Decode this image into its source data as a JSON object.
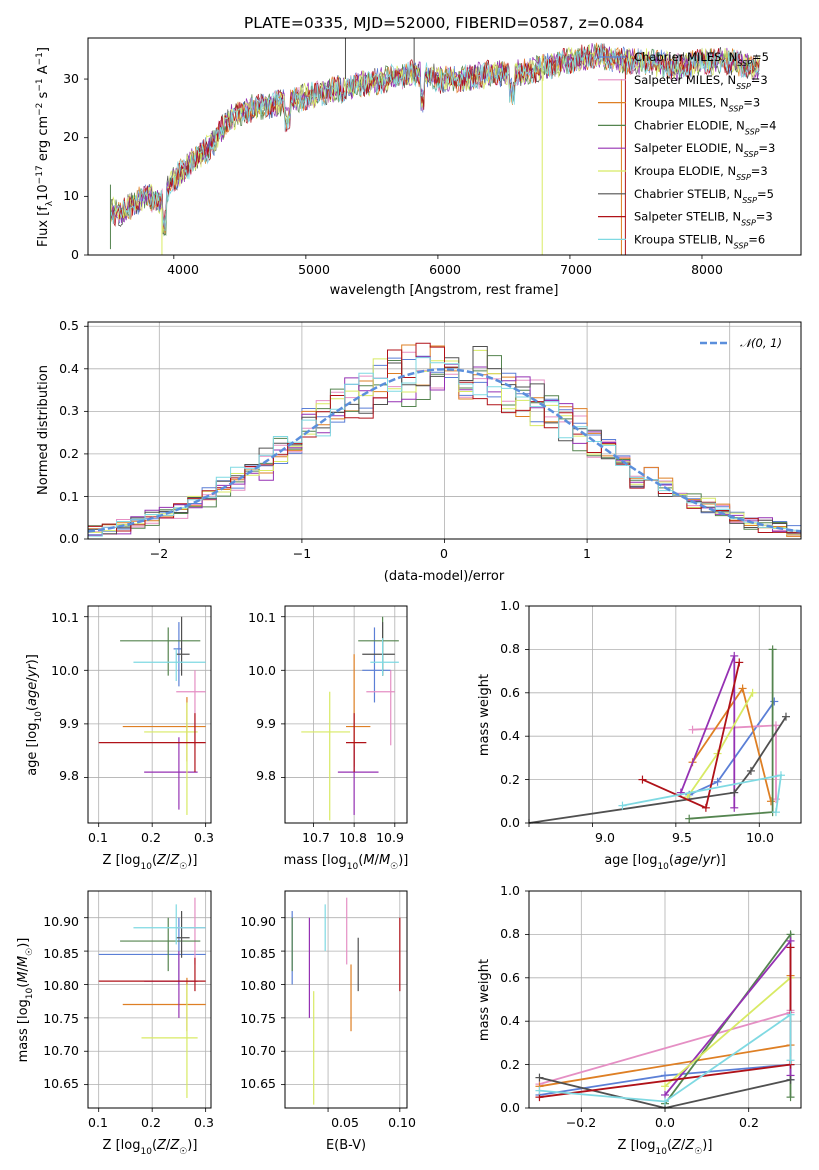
{
  "colors": [
    "#5b7fd6",
    "#e58fc4",
    "#de7f24",
    "#54844f",
    "#9531b3",
    "#d8ea64",
    "#505050",
    "#b01219",
    "#7fd9e2"
  ],
  "spectrum_panel": {
    "title": "PLATE=0335, MJD=52000, FIBERID=0587, z=0.084",
    "xlabel": "wavelength [Angstrom, rest frame]",
    "ylabel": "Flux [f_λ 10^-17 erg cm^-2 s^-1 A^-1]",
    "xticks": [
      "4000",
      "5000",
      "6000",
      "7000",
      "8000"
    ],
    "yticks": [
      "0",
      "10",
      "20",
      "30"
    ],
    "legend": [
      "Chabrier MILES, N_SSP=5",
      "Salpeter MILES, N_SSP=3",
      "Kroupa MILES, N_SSP=3",
      "Chabrier ELODIE, N_SSP=4",
      "Salpeter ELODIE, N_SSP=3",
      "Kroupa ELODIE, N_SSP=3",
      "Chabrier STELIB, N_SSP=5",
      "Salpeter STELIB, N_SSP=3",
      "Kroupa STELIB, N_SSP=6"
    ]
  },
  "residual_panel": {
    "xlabel": "(data-model)/error",
    "ylabel": "Normed distribution",
    "xticks": [
      "−2",
      "−1",
      "0",
      "1",
      "2"
    ],
    "yticks": [
      "0.0",
      "0.1",
      "0.2",
      "0.3",
      "0.4",
      "0.5"
    ],
    "legend_gauss": "𝒩(0, 1)"
  },
  "age_z_panel": {
    "xlabel": "Z [log10(Z/Z☉)]",
    "ylabel": "age [log10(age/yr)]",
    "xticks": [
      "0.1",
      "0.2",
      "0.3"
    ],
    "yticks": [
      "9.8",
      "9.9",
      "10.0",
      "10.1"
    ]
  },
  "age_mass_panel": {
    "xlabel": "mass [log10(M/M☉)]",
    "xticks": [
      "10.7",
      "10.8",
      "10.9"
    ],
    "yticks": [
      "9.8",
      "9.9",
      "10.0",
      "10.1"
    ]
  },
  "weight_age_panel": {
    "xlabel": "age [log10(age/yr)]",
    "ylabel": "mass weight",
    "xticks": [
      "9.0",
      "9.5",
      "10.0"
    ],
    "yticks": [
      "0.0",
      "0.2",
      "0.4",
      "0.6",
      "0.8",
      "1.0"
    ]
  },
  "mass_z_panel": {
    "xlabel": "Z [log10(Z/Z☉)]",
    "ylabel": "mass [log10(M/M☉)]",
    "xticks": [
      "0.1",
      "0.2",
      "0.3"
    ],
    "yticks": [
      "10.65",
      "10.70",
      "10.75",
      "10.80",
      "10.85",
      "10.90"
    ]
  },
  "mass_ebv_panel": {
    "xlabel": "E(B-V)",
    "xticks": [
      "0.05",
      "0.10"
    ],
    "yticks": [
      "10.65",
      "10.70",
      "10.75",
      "10.80",
      "10.85",
      "10.90"
    ]
  },
  "weight_z_panel": {
    "xlabel": "Z [log10(Z/Z☉)]",
    "ylabel": "mass weight",
    "xticks": [
      "−0.2",
      "0.0",
      "0.2"
    ],
    "yticks": [
      "0.0",
      "0.2",
      "0.4",
      "0.6",
      "0.8",
      "1.0"
    ]
  },
  "chart_data": [
    {
      "type": "line",
      "title": "PLATE=0335, MJD=52000, FIBERID=0587, z=0.084",
      "xlabel": "wavelength [Angstrom, rest frame]",
      "ylabel": "Flux [f_λ 10^-17 erg cm^-2 s^-1 A^-1]",
      "xlim": [
        3350,
        8750
      ],
      "ylim": [
        0,
        37
      ],
      "series_names": [
        "Chabrier MILES, N_SSP=5",
        "Salpeter MILES, N_SSP=3",
        "Kroupa MILES, N_SSP=3",
        "Chabrier ELODIE, N_SSP=4",
        "Salpeter ELODIE, N_SSP=3",
        "Kroupa ELODIE, N_SSP=3",
        "Chabrier STELIB, N_SSP=5",
        "Salpeter STELIB, N_SSP=3",
        "Kroupa STELIB, N_SSP=6"
      ],
      "continuum_x": [
        3500,
        3600,
        3700,
        3800,
        3900,
        4000,
        4100,
        4200,
        4300,
        4400,
        4600,
        4800,
        5000,
        5200,
        5400,
        5600,
        5800,
        6000,
        6200,
        6400,
        6600,
        6800,
        7000,
        7200,
        7400,
        7600,
        7800,
        8000,
        8200,
        8400
      ],
      "continuum_y": [
        8,
        7,
        9,
        10,
        9,
        13,
        15,
        17,
        19,
        23,
        25,
        26,
        27,
        28,
        29,
        30,
        31,
        30,
        30,
        31,
        31,
        32,
        33,
        34,
        33,
        33,
        32,
        33,
        33,
        32
      ],
      "legend_placement": "right"
    },
    {
      "type": "line",
      "xlabel": "(data-model)/error",
      "ylabel": "Normed distribution",
      "xlim": [
        -2.5,
        2.5
      ],
      "ylim": [
        0,
        0.51
      ],
      "series": [
        {
          "name": "𝒩(0, 1)",
          "mean": 0,
          "sigma": 1
        }
      ],
      "histogram_bin_width": 0.1,
      "legend_placement": "top-right",
      "grid": true
    },
    {
      "type": "scatter",
      "xlabel": "Z [log10(Z/Z☉)]",
      "ylabel": "age [log10(age/yr)]",
      "xlim": [
        0.08,
        0.31
      ],
      "ylim": [
        9.715,
        10.12
      ],
      "points": [
        [
          0.25,
          10.04,
          0.24,
          0.255,
          9.97,
          10.09
        ],
        [
          0.28,
          9.96,
          0.245,
          0.3,
          9.86,
          10.0
        ],
        [
          0.265,
          9.895,
          0.145,
          0.3,
          9.83,
          9.95
        ],
        [
          0.23,
          10.055,
          0.14,
          0.29,
          9.99,
          10.08
        ],
        [
          0.25,
          9.81,
          0.185,
          0.285,
          9.74,
          9.875
        ],
        [
          0.265,
          9.885,
          0.185,
          0.285,
          9.73,
          9.94
        ],
        [
          0.255,
          10.03,
          0.245,
          0.27,
          9.99,
          10.1
        ],
        [
          0.28,
          9.865,
          0.1,
          0.3,
          9.81,
          9.92
        ],
        [
          0.245,
          10.015,
          0.165,
          0.3,
          9.98,
          10.04
        ]
      ],
      "grid": true
    },
    {
      "type": "scatter",
      "xlabel": "mass [log10(M/M☉)]",
      "xlim": [
        10.63,
        10.93
      ],
      "ylim": [
        9.715,
        10.12
      ],
      "points": [
        [
          10.85,
          10.0,
          10.82,
          10.89,
          9.94,
          10.08
        ],
        [
          10.89,
          9.96,
          10.83,
          10.9,
          9.86,
          10.0
        ],
        [
          10.8,
          9.895,
          10.78,
          10.84,
          9.82,
          10.03
        ],
        [
          10.87,
          10.055,
          10.81,
          10.91,
          9.99,
          10.1
        ],
        [
          10.8,
          9.81,
          10.76,
          10.86,
          9.73,
          9.86
        ],
        [
          10.74,
          9.885,
          10.67,
          10.79,
          9.72,
          9.96
        ],
        [
          10.87,
          10.03,
          10.82,
          10.9,
          9.99,
          10.09
        ],
        [
          10.8,
          9.865,
          10.78,
          10.83,
          9.81,
          9.92
        ],
        [
          10.87,
          10.015,
          10.84,
          10.91,
          9.99,
          10.06
        ]
      ],
      "grid": true
    },
    {
      "type": "line",
      "xlabel": "age [log10(age/yr)]",
      "ylabel": "mass weight",
      "xlim": [
        8.62,
        10.25
      ],
      "ylim": [
        0,
        1.0
      ],
      "series": [
        {
          "age": [
            9.58,
            9.75,
            10.09
          ],
          "weight": [
            0.13,
            0.19,
            0.56
          ]
        },
        {
          "age": [
            9.6,
            10.1,
            10.1
          ],
          "weight": [
            0.43,
            0.45,
            0.11
          ]
        },
        {
          "age": [
            9.6,
            9.9,
            10.07
          ],
          "weight": [
            0.28,
            0.62,
            0.1
          ]
        },
        {
          "age": [
            9.58,
            10.08,
            10.08
          ],
          "weight": [
            0.02,
            0.05,
            0.8
          ]
        },
        {
          "age": [
            9.53,
            9.85,
            9.85
          ],
          "weight": [
            0.14,
            0.77,
            0.07
          ]
        },
        {
          "age": [
            9.57,
            9.75,
            9.96
          ],
          "weight": [
            0.12,
            0.32,
            0.6
          ]
        },
        {
          "age": [
            8.62,
            9.85,
            9.95,
            10.16
          ],
          "weight": [
            0.0,
            0.14,
            0.24,
            0.49
          ]
        },
        {
          "age": [
            9.3,
            9.68,
            9.88
          ],
          "weight": [
            0.2,
            0.07,
            0.74
          ]
        },
        {
          "age": [
            9.18,
            10.13,
            10.1
          ],
          "weight": [
            0.08,
            0.22,
            0.05
          ]
        }
      ],
      "grid": true
    },
    {
      "type": "scatter",
      "xlabel": "Z [log10(Z/Z☉)]",
      "ylabel": "mass [log10(M/M☉)]",
      "xlim": [
        0.08,
        0.31
      ],
      "ylim": [
        10.615,
        10.94
      ],
      "points": [
        [
          0.25,
          10.845,
          0.1,
          0.3,
          10.8,
          10.9
        ],
        [
          0.28,
          10.885,
          0.245,
          0.3,
          10.83,
          10.93
        ],
        [
          0.265,
          10.77,
          0.145,
          0.3,
          10.73,
          10.81
        ],
        [
          0.23,
          10.865,
          0.14,
          0.29,
          10.82,
          10.9
        ],
        [
          0.25,
          10.805,
          0.185,
          0.285,
          10.75,
          10.85
        ],
        [
          0.265,
          10.72,
          0.18,
          0.285,
          10.63,
          10.8
        ],
        [
          0.255,
          10.87,
          0.245,
          0.27,
          10.84,
          10.91
        ],
        [
          0.28,
          10.805,
          0.1,
          0.3,
          10.79,
          10.84
        ],
        [
          0.245,
          10.885,
          0.165,
          0.3,
          10.86,
          10.92
        ]
      ],
      "grid": true
    },
    {
      "type": "scatter",
      "xlabel": "E(B-V)",
      "xlim": [
        0.02,
        0.105
      ],
      "ylim": [
        10.615,
        10.94
      ],
      "points": [
        [
          0.025,
          10.87,
          10.8,
          10.91
        ],
        [
          0.063,
          10.88,
          10.83,
          10.93
        ],
        [
          0.066,
          10.79,
          10.73,
          10.83
        ],
        [
          0.025,
          10.86,
          10.82,
          10.9
        ],
        [
          0.037,
          10.85,
          10.75,
          10.9
        ],
        [
          0.04,
          10.71,
          10.62,
          10.79
        ],
        [
          0.071,
          10.82,
          10.79,
          10.87
        ],
        [
          0.1,
          10.84,
          10.79,
          10.9
        ],
        [
          0.048,
          10.9,
          10.85,
          10.92
        ]
      ],
      "grid": true
    },
    {
      "type": "line",
      "xlabel": "Z [log10(Z/Z☉)]",
      "ylabel": "mass weight",
      "xlim": [
        -0.325,
        0.325
      ],
      "ylim": [
        0,
        1.0
      ],
      "series": [
        {
          "z": [
            -0.3,
            0.0,
            0.3,
            0.3
          ],
          "weight": [
            0.06,
            0.15,
            0.2,
            0.13
          ]
        },
        {
          "z": [
            -0.3,
            0.3,
            0.3
          ],
          "weight": [
            0.11,
            0.44,
            0.45
          ]
        },
        {
          "z": [
            -0.3,
            0.3,
            0.3
          ],
          "weight": [
            0.1,
            0.29,
            0.61
          ]
        },
        {
          "z": [
            0.0,
            0.3,
            0.3
          ],
          "weight": [
            0.02,
            0.8,
            0.05
          ]
        },
        {
          "z": [
            0.0,
            0.3,
            0.3
          ],
          "weight": [
            0.06,
            0.77,
            0.15
          ]
        },
        {
          "z": [
            0.0,
            0.3
          ],
          "weight": [
            0.1,
            0.6
          ]
        },
        {
          "z": [
            -0.3,
            0.0,
            0.3
          ],
          "weight": [
            0.14,
            0.0,
            0.13
          ]
        },
        {
          "z": [
            -0.3,
            0.3,
            0.3
          ],
          "weight": [
            0.05,
            0.2,
            0.74
          ]
        },
        {
          "z": [
            -0.3,
            0.0,
            0.3,
            0.3
          ],
          "weight": [
            0.08,
            0.03,
            0.43,
            0.22
          ]
        }
      ],
      "grid": true
    }
  ]
}
